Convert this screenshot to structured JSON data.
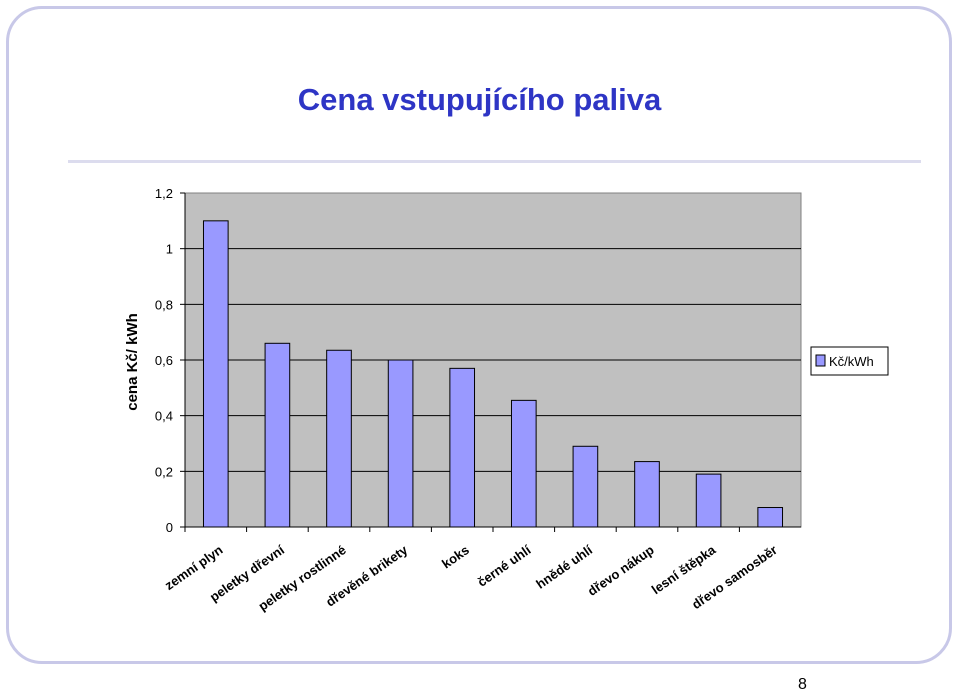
{
  "slide": {
    "title": "Cena vstupujícího paliva",
    "page_number": "8"
  },
  "chart_data": {
    "type": "bar",
    "title": "",
    "xlabel": "",
    "ylabel": "cena Kč/ kWh",
    "ylim": [
      0,
      1.2
    ],
    "yticks": [
      "0",
      "0,2",
      "0,4",
      "0,6",
      "0,8",
      "1",
      "1,2"
    ],
    "grid": true,
    "legend_position": "right",
    "categories": [
      "zemní plyn",
      "peletky dřevní",
      "peletky rostlinné",
      "dřevěné brikety",
      "koks",
      "černé uhlí",
      "hnědé uhlí",
      "dřevo nákup",
      "lesní štěpka",
      "dřevo samosběr"
    ],
    "series": [
      {
        "name": "Kč/kWh",
        "values": [
          1.1,
          0.66,
          0.635,
          0.6,
          0.57,
          0.455,
          0.29,
          0.235,
          0.19,
          0.07
        ]
      }
    ],
    "colors": {
      "bar": "#9999ff",
      "plot_background": "#c0c0c0",
      "gridline": "#000000"
    }
  }
}
